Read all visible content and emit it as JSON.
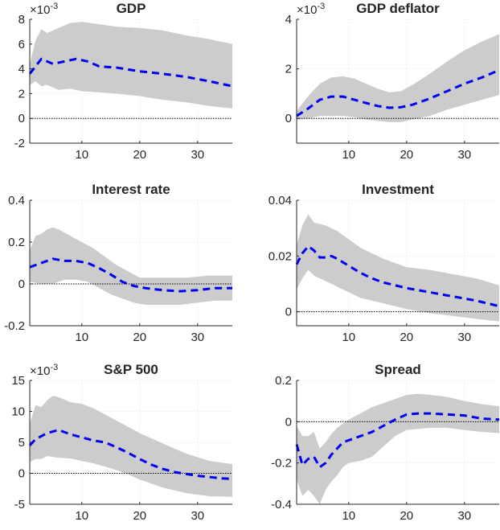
{
  "chart_data": [
    {
      "type": "line",
      "title": "GDP",
      "multiplier": "×10",
      "multiplier_exp": "-3",
      "xlim": [
        1,
        36
      ],
      "ylim": [
        -2,
        8
      ],
      "xticks": [
        10,
        20,
        30
      ],
      "xtick_labels": [
        "10",
        "20",
        "30"
      ],
      "yticks": [
        -2,
        0,
        2,
        4,
        6,
        8
      ],
      "ytick_labels": [
        "-2",
        "0",
        "2",
        "4",
        "6",
        "8"
      ],
      "grid": true,
      "series": [
        {
          "name": "median",
          "x": [
            1,
            3,
            5,
            7,
            9,
            11,
            13,
            16,
            20,
            24,
            28,
            32,
            36
          ],
          "values": [
            3.6,
            4.8,
            4.4,
            4.6,
            4.8,
            4.6,
            4.2,
            4.1,
            3.8,
            3.6,
            3.35,
            3.0,
            2.6
          ]
        },
        {
          "name": "upper",
          "x": [
            1,
            2,
            3,
            4,
            6,
            8,
            10,
            13,
            16,
            20,
            24,
            28,
            32,
            36
          ],
          "values": [
            4.4,
            6.3,
            7.2,
            6.9,
            7.3,
            7.7,
            7.8,
            7.6,
            7.4,
            7.3,
            7.1,
            6.7,
            6.4,
            6.0
          ]
        },
        {
          "name": "lower",
          "x": [
            1,
            2,
            3,
            4,
            6,
            8,
            10,
            13,
            16,
            20,
            24,
            28,
            32,
            36
          ],
          "values": [
            2.7,
            3.0,
            2.6,
            2.7,
            2.3,
            2.4,
            2.2,
            2.1,
            2.0,
            1.8,
            1.5,
            1.3,
            1.0,
            0.8
          ]
        }
      ]
    },
    {
      "type": "line",
      "title": "GDP deflator",
      "multiplier": "×10",
      "multiplier_exp": "-3",
      "xlim": [
        1,
        36
      ],
      "ylim": [
        -1,
        4
      ],
      "xticks": [
        10,
        20,
        30
      ],
      "xtick_labels": [
        "10",
        "20",
        "30"
      ],
      "yticks": [
        0,
        2,
        4
      ],
      "ytick_labels": [
        "0",
        "2",
        "4"
      ],
      "grid": true,
      "series": [
        {
          "name": "median",
          "x": [
            1,
            3,
            5,
            7,
            9,
            11,
            13,
            15,
            17,
            19,
            21,
            24,
            27,
            30,
            33,
            36
          ],
          "values": [
            0.1,
            0.4,
            0.75,
            0.88,
            0.88,
            0.75,
            0.62,
            0.5,
            0.43,
            0.45,
            0.55,
            0.8,
            1.1,
            1.4,
            1.65,
            1.95
          ]
        },
        {
          "name": "upper",
          "x": [
            1,
            3,
            5,
            7,
            9,
            11,
            13,
            15,
            17,
            19,
            21,
            24,
            27,
            30,
            33,
            36
          ],
          "values": [
            0.3,
            0.9,
            1.4,
            1.65,
            1.7,
            1.6,
            1.4,
            1.2,
            1.05,
            1.1,
            1.35,
            1.8,
            2.3,
            2.75,
            3.1,
            3.4
          ]
        },
        {
          "name": "lower",
          "x": [
            1,
            3,
            5,
            7,
            9,
            11,
            13,
            15,
            17,
            19,
            21,
            24,
            27,
            30,
            33,
            36
          ],
          "values": [
            -0.05,
            0.0,
            0.1,
            0.1,
            0.1,
            0.05,
            -0.05,
            -0.1,
            -0.15,
            -0.15,
            -0.05,
            0.1,
            0.35,
            0.55,
            0.75,
            0.95
          ]
        }
      ]
    },
    {
      "type": "line",
      "title": "Interest rate",
      "multiplier": "",
      "multiplier_exp": "",
      "xlim": [
        1,
        36
      ],
      "ylim": [
        -0.2,
        0.4
      ],
      "xticks": [
        10,
        20,
        30
      ],
      "xtick_labels": [
        "10",
        "20",
        "30"
      ],
      "yticks": [
        -0.2,
        0,
        0.2,
        0.4
      ],
      "ytick_labels": [
        "-0.2",
        "0",
        "0.2",
        "0.4"
      ],
      "grid": true,
      "series": [
        {
          "name": "median",
          "x": [
            1,
            3,
            5,
            7,
            9,
            11,
            13,
            15,
            17,
            19,
            21,
            24,
            27,
            30,
            33,
            36
          ],
          "values": [
            0.08,
            0.1,
            0.12,
            0.11,
            0.11,
            0.1,
            0.075,
            0.045,
            0.01,
            -0.01,
            -0.02,
            -0.03,
            -0.035,
            -0.03,
            -0.02,
            -0.02
          ]
        },
        {
          "name": "upper",
          "x": [
            1,
            2,
            3,
            4,
            5,
            6,
            8,
            10,
            12,
            14,
            16,
            18,
            20,
            24,
            28,
            32,
            36
          ],
          "values": [
            0.16,
            0.23,
            0.24,
            0.26,
            0.27,
            0.26,
            0.23,
            0.2,
            0.17,
            0.13,
            0.09,
            0.06,
            0.03,
            0.03,
            0.03,
            0.04,
            0.04
          ]
        },
        {
          "name": "lower",
          "x": [
            1,
            3,
            5,
            7,
            9,
            11,
            13,
            15,
            17,
            19,
            21,
            24,
            27,
            30,
            33,
            36
          ],
          "values": [
            0.01,
            0.0,
            0.0,
            0.02,
            0.02,
            0.01,
            -0.02,
            -0.05,
            -0.07,
            -0.09,
            -0.1,
            -0.1,
            -0.1,
            -0.09,
            -0.08,
            -0.08
          ]
        }
      ]
    },
    {
      "type": "line",
      "title": "Investment",
      "multiplier": "",
      "multiplier_exp": "",
      "xlim": [
        1,
        36
      ],
      "ylim": [
        -0.005,
        0.04
      ],
      "xticks": [
        10,
        20,
        30
      ],
      "xtick_labels": [
        "10",
        "20",
        "30"
      ],
      "yticks": [
        0,
        0.02,
        0.04
      ],
      "ytick_labels": [
        "0",
        "0.02",
        "0.04"
      ],
      "grid": true,
      "series": [
        {
          "name": "median",
          "x": [
            1,
            2,
            3,
            4,
            5,
            6,
            7,
            8,
            10,
            12,
            14,
            16,
            18,
            20,
            24,
            28,
            32,
            36
          ],
          "values": [
            0.017,
            0.021,
            0.0235,
            0.022,
            0.0195,
            0.0195,
            0.02,
            0.019,
            0.0165,
            0.014,
            0.012,
            0.0105,
            0.0095,
            0.0085,
            0.007,
            0.0055,
            0.004,
            0.002
          ]
        },
        {
          "name": "upper",
          "x": [
            1,
            2,
            3,
            4,
            6,
            8,
            10,
            12,
            14,
            16,
            18,
            20,
            24,
            28,
            32,
            36
          ],
          "values": [
            0.024,
            0.031,
            0.035,
            0.032,
            0.031,
            0.029,
            0.026,
            0.023,
            0.021,
            0.019,
            0.0175,
            0.016,
            0.015,
            0.0135,
            0.012,
            0.0095
          ]
        },
        {
          "name": "lower",
          "x": [
            1,
            2,
            3,
            4,
            6,
            8,
            10,
            12,
            14,
            16,
            18,
            20,
            24,
            28,
            32,
            36
          ],
          "values": [
            0.008,
            0.012,
            0.015,
            0.013,
            0.011,
            0.009,
            0.007,
            0.005,
            0.004,
            0.003,
            0.002,
            0.001,
            -0.0005,
            -0.0015,
            -0.0025,
            -0.0035
          ]
        }
      ]
    },
    {
      "type": "line",
      "title": "S&P 500",
      "multiplier": "×10",
      "multiplier_exp": "-3",
      "xlim": [
        1,
        36
      ],
      "ylim": [
        -5,
        15
      ],
      "xticks": [
        10,
        20,
        30
      ],
      "xtick_labels": [
        "10",
        "20",
        "30"
      ],
      "yticks": [
        -5,
        0,
        5,
        10,
        15
      ],
      "ytick_labels": [
        "-5",
        "0",
        "5",
        "10",
        "15"
      ],
      "grid": true,
      "series": [
        {
          "name": "median",
          "x": [
            1,
            2,
            4,
            6,
            8,
            10,
            12,
            14,
            16,
            18,
            20,
            22,
            24,
            26,
            28,
            30,
            32,
            34,
            36
          ],
          "values": [
            4.5,
            5.5,
            6.5,
            7.0,
            6.3,
            5.8,
            5.3,
            5.0,
            4.2,
            3.3,
            2.3,
            1.4,
            0.7,
            0.2,
            -0.1,
            -0.4,
            -0.6,
            -0.8,
            -0.9
          ]
        },
        {
          "name": "upper",
          "x": [
            1,
            2,
            3,
            4,
            5,
            6,
            8,
            10,
            12,
            14,
            16,
            18,
            20,
            24,
            28,
            32,
            36
          ],
          "values": [
            8.0,
            11.0,
            10.7,
            11.8,
            12.5,
            12.3,
            11.5,
            11.2,
            10.5,
            9.5,
            8.5,
            7.5,
            6.5,
            4.8,
            3.2,
            2.0,
            1.5
          ]
        },
        {
          "name": "lower",
          "x": [
            1,
            2,
            3,
            4,
            6,
            8,
            10,
            12,
            14,
            16,
            18,
            20,
            24,
            28,
            32,
            36
          ],
          "values": [
            1.8,
            2.3,
            2.3,
            2.8,
            2.5,
            2.4,
            2.0,
            1.6,
            1.1,
            0.5,
            -0.2,
            -1.0,
            -2.3,
            -3.2,
            -3.7,
            -3.8
          ]
        }
      ]
    },
    {
      "type": "line",
      "title": "Spread",
      "multiplier": "",
      "multiplier_exp": "",
      "xlim": [
        1,
        36
      ],
      "ylim": [
        -0.4,
        0.2
      ],
      "xticks": [
        10,
        20,
        30
      ],
      "xtick_labels": [
        "10",
        "20",
        "30"
      ],
      "yticks": [
        -0.4,
        -0.2,
        0,
        0.2
      ],
      "ytick_labels": [
        "-0.4",
        "-0.2",
        "0",
        "0.2"
      ],
      "grid": true,
      "series": [
        {
          "name": "median",
          "x": [
            1,
            2,
            3,
            4,
            5,
            6,
            7,
            8,
            9,
            10,
            12,
            14,
            16,
            18,
            20,
            22,
            24,
            27,
            30,
            33,
            36
          ],
          "values": [
            -0.11,
            -0.21,
            -0.18,
            -0.17,
            -0.22,
            -0.2,
            -0.16,
            -0.13,
            -0.1,
            -0.09,
            -0.07,
            -0.05,
            -0.02,
            0.01,
            0.035,
            0.04,
            0.04,
            0.035,
            0.03,
            0.015,
            0.01
          ]
        },
        {
          "name": "upper",
          "x": [
            1,
            2,
            3,
            4,
            5,
            6,
            7,
            8,
            9,
            10,
            12,
            14,
            16,
            18,
            20,
            22,
            24,
            27,
            30,
            33,
            36
          ],
          "values": [
            -0.02,
            -0.07,
            -0.07,
            -0.05,
            -0.13,
            -0.1,
            -0.06,
            -0.03,
            -0.01,
            0.01,
            0.04,
            0.07,
            0.09,
            0.11,
            0.13,
            0.135,
            0.13,
            0.12,
            0.1,
            0.085,
            0.075
          ]
        },
        {
          "name": "lower",
          "x": [
            1,
            2,
            3,
            4,
            5,
            6,
            7,
            8,
            9,
            10,
            12,
            14,
            16,
            18,
            20,
            22,
            24,
            27,
            30,
            33,
            36
          ],
          "values": [
            -0.28,
            -0.36,
            -0.33,
            -0.36,
            -0.4,
            -0.33,
            -0.29,
            -0.26,
            -0.22,
            -0.2,
            -0.19,
            -0.17,
            -0.12,
            -0.07,
            -0.04,
            -0.035,
            -0.03,
            -0.03,
            -0.04,
            -0.05,
            -0.055
          ]
        }
      ]
    }
  ]
}
